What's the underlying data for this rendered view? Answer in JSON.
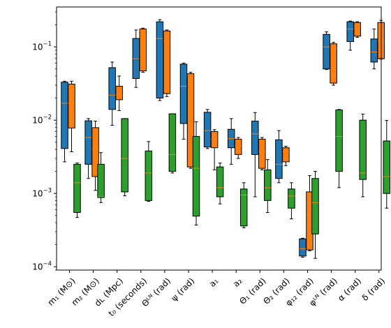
{
  "chart_data": {
    "type": "boxplot",
    "yscale": "log",
    "ylim": [
      9e-05,
      0.35
    ],
    "y_tick_labels": [
      {
        "value": 0.0001,
        "base": "10",
        "exp": "−4"
      },
      {
        "value": 0.001,
        "base": "10",
        "exp": "−3"
      },
      {
        "value": 0.01,
        "base": "10",
        "exp": "−2"
      },
      {
        "value": 0.1,
        "base": "10",
        "exp": "−1"
      }
    ],
    "categories": [
      "m₁ (M⊙)",
      "m₂ (M⊙)",
      "dʟ (Mpc)",
      "t₀ (seconds)",
      "Θᴸᴺ (rad)",
      "ψ (rad)",
      "a₁",
      "a₂",
      "Θ₁ (rad)",
      "Θ₂ (rad)",
      "φ₁₂ (rad)",
      "φᴸᴺ (rad)",
      "α (rad)",
      "δ (rad)"
    ],
    "series": [
      {
        "color": "#1f77b4",
        "boxes": [
          {
            "whislo": 0.0027,
            "q1": 0.0041,
            "med": 0.017,
            "q3": 0.033,
            "whishi": 0.034
          },
          {
            "whislo": 0.0016,
            "q1": 0.0025,
            "med": 0.0058,
            "q3": 0.0098,
            "whishi": 0.0105
          },
          {
            "whislo": 0.0085,
            "q1": 0.014,
            "med": 0.022,
            "q3": 0.052,
            "whishi": 0.062
          },
          {
            "whislo": 0.028,
            "q1": 0.037,
            "med": 0.069,
            "q3": 0.13,
            "whishi": 0.17
          },
          {
            "whislo": 0.0185,
            "q1": 0.02,
            "med": 0.13,
            "q3": 0.22,
            "whishi": 0.235
          },
          {
            "whislo": 0.0055,
            "q1": 0.009,
            "med": 0.029,
            "q3": 0.058,
            "whishi": 0.06
          },
          {
            "whislo": 0.0041,
            "q1": 0.0043,
            "med": 0.0072,
            "q3": 0.0128,
            "whishi": 0.014
          },
          {
            "whislo": 0.0025,
            "q1": 0.0042,
            "med": 0.0056,
            "q3": 0.0075,
            "whishi": 0.0105
          },
          {
            "whislo": 0.0009,
            "q1": 0.0034,
            "med": 0.0065,
            "q3": 0.0097,
            "whishi": 0.0127
          },
          {
            "whislo": 0.0014,
            "q1": 0.0016,
            "med": 0.0025,
            "q3": 0.0054,
            "whishi": 0.0072
          },
          {
            "whislo": 0.000135,
            "q1": 0.00014,
            "med": 0.000175,
            "q3": 0.00024,
            "whishi": 0.000245
          },
          {
            "whislo": 0.049,
            "q1": 0.05,
            "med": 0.1,
            "q3": 0.148,
            "whishi": 0.16
          },
          {
            "whislo": 0.09,
            "q1": 0.118,
            "med": 0.175,
            "q3": 0.22,
            "whishi": 0.225
          },
          {
            "whislo": 0.05,
            "q1": 0.062,
            "med": 0.085,
            "q3": 0.128,
            "whishi": 0.175
          }
        ]
      },
      {
        "color": "#ff7f0e",
        "boxes": [
          {
            "whislo": 0.0037,
            "q1": 0.0078,
            "med": 0.017,
            "q3": 0.031,
            "whishi": 0.034
          },
          {
            "whislo": 0.0011,
            "q1": 0.0017,
            "med": 0.004,
            "q3": 0.0079,
            "whishi": 0.0097
          },
          {
            "whislo": 0.0135,
            "q1": 0.019,
            "med": 0.022,
            "q3": 0.029,
            "whishi": 0.04
          },
          {
            "whislo": 0.045,
            "q1": 0.047,
            "med": 0.17,
            "q3": 0.175,
            "whishi": 0.18
          },
          {
            "whislo": 0.021,
            "q1": 0.023,
            "med": 0.12,
            "q3": 0.165,
            "whishi": 0.17
          },
          {
            "whislo": 0.0022,
            "q1": 0.0023,
            "med": 0.041,
            "q3": 0.043,
            "whishi": 0.045
          },
          {
            "whislo": 0.0021,
            "q1": 0.0042,
            "med": 0.0055,
            "q3": 0.007,
            "whishi": 0.0074
          },
          {
            "whislo": 0.003,
            "q1": 0.0034,
            "med": 0.0045,
            "q3": 0.0055,
            "whishi": 0.0058
          },
          {
            "whislo": 0.0021,
            "q1": 0.0022,
            "med": 0.0037,
            "q3": 0.0055,
            "whishi": 0.0058
          },
          {
            "whislo": 0.0024,
            "q1": 0.0027,
            "med": 0.0037,
            "q3": 0.0042,
            "whishi": 0.0044
          },
          {
            "whislo": 0.000165,
            "q1": 0.00017,
            "med": 0.0005,
            "q3": 0.00105,
            "whishi": 0.00175
          },
          {
            "whislo": 0.03,
            "q1": 0.032,
            "med": 0.095,
            "q3": 0.11,
            "whishi": 0.115
          },
          {
            "whislo": 0.135,
            "q1": 0.14,
            "med": 0.19,
            "q3": 0.215,
            "whishi": 0.22
          },
          {
            "whislo": 0.068,
            "q1": 0.069,
            "med": 0.12,
            "q3": 0.215,
            "whishi": 0.23
          }
        ]
      },
      {
        "color": "#2ca02c",
        "boxes": [
          {
            "whislo": 0.00047,
            "q1": 0.00055,
            "med": 0.0014,
            "q3": 0.0025,
            "whishi": 0.0026
          },
          {
            "whislo": 0.00075,
            "q1": 0.00088,
            "med": 0.00091,
            "q3": 0.0025,
            "whishi": 0.0036
          },
          {
            "whislo": 0.00093,
            "q1": 0.00105,
            "med": 0.003,
            "q3": 0.0105,
            "whishi": 0.0105
          },
          {
            "whislo": 0.00078,
            "q1": 0.0008,
            "med": 0.0019,
            "q3": 0.0038,
            "whishi": 0.0051
          },
          {
            "whislo": 0.0019,
            "q1": 0.002,
            "med": 0.0034,
            "q3": 0.0122,
            "whishi": 0.0122
          },
          {
            "whislo": 0.00037,
            "q1": 0.00049,
            "med": 0.0022,
            "q3": 0.006,
            "whishi": 0.0095
          },
          {
            "whislo": 0.00072,
            "q1": 0.0009,
            "med": 0.0012,
            "q3": 0.0023,
            "whishi": 0.0026
          },
          {
            "whislo": 0.00034,
            "q1": 0.00036,
            "med": 0.00095,
            "q3": 0.00115,
            "whishi": 0.0014
          },
          {
            "whislo": 0.00055,
            "q1": 0.0008,
            "med": 0.0012,
            "q3": 0.0021,
            "whishi": 0.0029
          },
          {
            "whislo": 0.00045,
            "q1": 0.00063,
            "med": 0.00092,
            "q3": 0.00115,
            "whishi": 0.0014
          },
          {
            "whislo": 0.00013,
            "q1": 0.00028,
            "med": 0.00075,
            "q3": 0.0016,
            "whishi": 0.002
          },
          {
            "whislo": 0.0012,
            "q1": 0.002,
            "med": 0.006,
            "q3": 0.0138,
            "whishi": 0.014
          },
          {
            "whislo": 0.0009,
            "q1": 0.00155,
            "med": 0.0019,
            "q3": 0.01,
            "whishi": 0.0121
          },
          {
            "whislo": 0.00063,
            "q1": 0.001,
            "med": 0.0017,
            "q3": 0.0052,
            "whishi": 0.0099
          }
        ]
      }
    ],
    "median_color": "#ff7f0e",
    "legend": "none",
    "grid": false
  }
}
